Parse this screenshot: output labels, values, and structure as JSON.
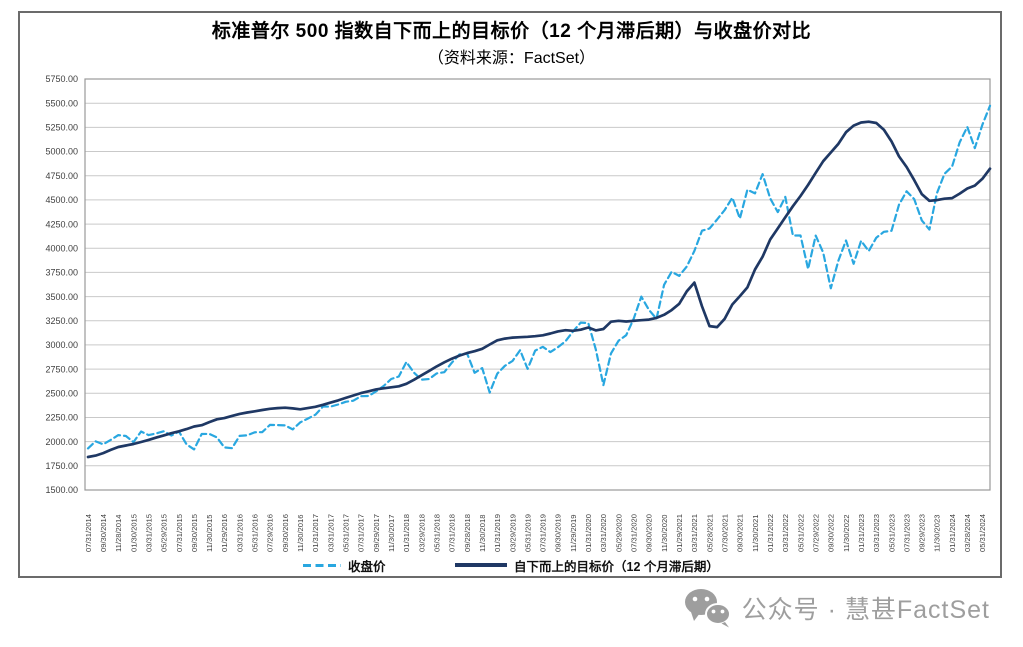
{
  "title": "标准普尔 500 指数自下而上的目标价（12 个月滞后期）与收盘价对比",
  "subtitle": "（资料来源：FactSet）",
  "legend": {
    "items": [
      {
        "label": "收盘价"
      },
      {
        "label": "自下而上的目标价（12 个月滞后期）"
      }
    ]
  },
  "watermark": {
    "icon": "wechat-icon",
    "text": "公众号 · 慧甚FactSet",
    "color": "#9e9e9e"
  },
  "colors": {
    "closing_price_line": "#29a7e0",
    "target_price_line": "#1f3864",
    "gridline": "#c9c9c9",
    "plot_border": "#999999",
    "tick_label": "#3f3f3f",
    "frame_border": "#6b6b6b"
  },
  "chart_data": {
    "type": "line",
    "title": "标准普尔 500 指数自下而上的目标价（12 个月滞后期）与收盘价对比",
    "subtitle": "（资料来源：FactSet）",
    "grid": true,
    "legend_position": "bottom",
    "ylim": [
      1500,
      5750
    ],
    "ytick_step": 250,
    "y_tick_labels": [
      "5750.00",
      "5500.00",
      "5250.00",
      "5000.00",
      "4750.00",
      "4500.00",
      "4250.00",
      "4000.00",
      "3750.00",
      "3500.00",
      "3250.00",
      "3000.00",
      "2750.00",
      "2500.00",
      "2250.00",
      "2000.00",
      "1750.00",
      "1500.00"
    ],
    "x_frequency": "monthly",
    "x_tick_labels": [
      "07/31/2014",
      "09/30/2014",
      "11/28/2014",
      "01/30/2015",
      "03/31/2015",
      "05/29/2015",
      "07/31/2015",
      "09/30/2015",
      "11/30/2015",
      "01/29/2016",
      "03/31/2016",
      "05/31/2016",
      "07/29/2016",
      "09/30/2016",
      "11/30/2016",
      "01/31/2017",
      "03/31/2017",
      "05/31/2017",
      "07/31/2017",
      "09/29/2017",
      "11/30/2017",
      "01/31/2018",
      "03/29/2018",
      "05/31/2018",
      "07/31/2018",
      "09/28/2018",
      "11/30/2018",
      "01/31/2019",
      "03/29/2019",
      "05/31/2019",
      "07/31/2019",
      "09/30/2019",
      "11/29/2019",
      "01/31/2020",
      "03/31/2020",
      "05/29/2020",
      "07/31/2020",
      "09/30/2020",
      "11/30/2020",
      "01/29/2021",
      "03/31/2021",
      "05/28/2021",
      "07/30/2021",
      "09/30/2021",
      "11/30/2021",
      "01/31/2022",
      "03/31/2022",
      "05/31/2022",
      "07/29/2022",
      "09/30/2022",
      "11/30/2022",
      "01/31/2023",
      "03/31/2023",
      "05/31/2023",
      "07/31/2023",
      "09/29/2023",
      "11/30/2023",
      "01/31/2024",
      "03/28/2024",
      "05/31/2024"
    ],
    "series": [
      {
        "name": "收盘价",
        "color": "#29a7e0",
        "dash": true,
        "width": 2.2,
        "values": [
          1930.67,
          2003.37,
          1972.29,
          2018.05,
          2067.56,
          2058.9,
          1994.99,
          2104.5,
          2067.89,
          2085.51,
          2107.39,
          2063.11,
          2103.84,
          1972.18,
          1920.03,
          2079.36,
          2080.41,
          2043.94,
          1940.24,
          1932.23,
          2059.74,
          2065.3,
          2096.95,
          2098.86,
          2173.6,
          2170.95,
          2168.27,
          2126.15,
          2198.81,
          2238.83,
          2278.87,
          2363.64,
          2362.72,
          2384.2,
          2411.8,
          2423.41,
          2470.3,
          2471.65,
          2519.36,
          2575.26,
          2647.58,
          2673.61,
          2823.81,
          2713.83,
          2640.87,
          2648.05,
          2705.27,
          2718.37,
          2816.29,
          2901.52,
          2913.98,
          2711.74,
          2760.17,
          2506.85,
          2704.1,
          2784.49,
          2834.4,
          2945.83,
          2752.06,
          2941.76,
          2980.38,
          2926.46,
          2976.74,
          3037.56,
          3140.98,
          3230.78,
          3225.52,
          2954.22,
          2584.59,
          2912.43,
          3044.31,
          3100.29,
          3271.12,
          3500.31,
          3363.0,
          3269.96,
          3621.63,
          3756.07,
          3714.24,
          3811.15,
          3972.89,
          4181.17,
          4204.11,
          4297.5,
          4395.26,
          4522.68,
          4307.54,
          4605.38,
          4567.0,
          4766.18,
          4515.55,
          4373.94,
          4530.41,
          4131.93,
          4132.15,
          3785.38,
          4130.29,
          3955.0,
          3585.62,
          3871.98,
          4080.11,
          3839.5,
          4076.6,
          3970.15,
          4109.31,
          4169.48,
          4179.83,
          4450.38,
          4588.96,
          4507.66,
          4288.05,
          4193.8,
          4567.8,
          4769.83,
          4845.65,
          5096.27,
          5254.35,
          5035.69,
          5277.51,
          5473.17
        ]
      },
      {
        "name": "自下而上的目标价（12 个月滞后期）",
        "color": "#1f3864",
        "dash": false,
        "width": 2.7,
        "values": [
          1841,
          1856,
          1882,
          1915,
          1945,
          1960,
          1976,
          1996,
          2018,
          2042,
          2065,
          2087,
          2107,
          2130,
          2157,
          2170,
          2202,
          2231,
          2243,
          2266,
          2287,
          2301,
          2314,
          2327,
          2340,
          2347,
          2351,
          2344,
          2334,
          2347,
          2360,
          2381,
          2404,
          2427,
          2452,
          2477,
          2502,
          2521,
          2540,
          2552,
          2562,
          2572,
          2598,
          2640,
          2686,
          2732,
          2778,
          2820,
          2858,
          2890,
          2916,
          2935,
          2960,
          3005,
          3048,
          3066,
          3076,
          3080,
          3084,
          3090,
          3100,
          3118,
          3140,
          3152,
          3146,
          3158,
          3180,
          3150,
          3165,
          3240,
          3250,
          3242,
          3250,
          3256,
          3262,
          3280,
          3312,
          3360,
          3425,
          3555,
          3645,
          3400,
          3195,
          3185,
          3270,
          3418,
          3505,
          3595,
          3780,
          3912,
          4090,
          4205,
          4320,
          4435,
          4540,
          4655,
          4780,
          4900,
          4990,
          5080,
          5200,
          5268,
          5300,
          5308,
          5295,
          5225,
          5105,
          4950,
          4840,
          4705,
          4560,
          4490,
          4498,
          4512,
          4518,
          4565,
          4618,
          4648,
          4718,
          4822
        ]
      }
    ]
  }
}
